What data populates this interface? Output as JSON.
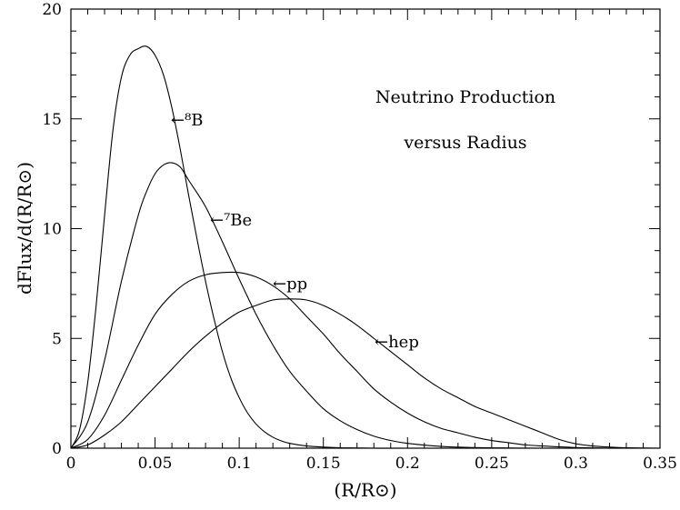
{
  "chart_data": {
    "type": "line",
    "title": "",
    "annotations": [
      "Neutrino Production",
      "versus Radius"
    ],
    "xlabel": "(R/R⊙)",
    "ylabel": "dFlux/d(R/R⊙)",
    "xlim": [
      0,
      0.35
    ],
    "ylim": [
      0,
      20
    ],
    "grid": false,
    "x_ticks": [
      "0",
      "0.05",
      "0.1",
      "0.15",
      "0.2",
      "0.25",
      "0.3",
      "0.35"
    ],
    "y_ticks": [
      "0",
      "5",
      "10",
      "15",
      "20"
    ],
    "series": [
      {
        "name": "8B",
        "label_text": "←⁸B",
        "x": [
          0,
          0.005,
          0.01,
          0.015,
          0.02,
          0.025,
          0.03,
          0.035,
          0.04,
          0.045,
          0.05,
          0.055,
          0.06,
          0.065,
          0.07,
          0.075,
          0.08,
          0.085,
          0.09,
          0.095,
          0.1,
          0.105,
          0.11,
          0.115,
          0.12,
          0.125,
          0.13,
          0.14,
          0.15,
          0.16,
          0.17,
          0.18,
          0.2,
          0.25
        ],
        "y": [
          0,
          0.8,
          3.0,
          6.5,
          10.6,
          14.5,
          16.9,
          17.9,
          18.2,
          18.3,
          17.9,
          17.0,
          15.5,
          13.6,
          11.5,
          9.5,
          7.6,
          5.9,
          4.4,
          3.2,
          2.3,
          1.6,
          1.1,
          0.75,
          0.5,
          0.33,
          0.22,
          0.1,
          0.05,
          0.02,
          0.01,
          0.0,
          0.0,
          0.0
        ]
      },
      {
        "name": "7Be",
        "label_text": "←⁷Be",
        "x": [
          0,
          0.01,
          0.02,
          0.03,
          0.04,
          0.045,
          0.05,
          0.055,
          0.06,
          0.065,
          0.07,
          0.08,
          0.09,
          0.1,
          0.11,
          0.12,
          0.13,
          0.14,
          0.15,
          0.16,
          0.17,
          0.18,
          0.19,
          0.2,
          0.22,
          0.24,
          0.26,
          0.28
        ],
        "y": [
          0,
          1.2,
          4.0,
          7.6,
          10.6,
          11.7,
          12.5,
          12.9,
          13.0,
          12.8,
          12.2,
          11.0,
          9.4,
          7.7,
          6.1,
          4.7,
          3.5,
          2.6,
          1.8,
          1.25,
          0.85,
          0.55,
          0.35,
          0.22,
          0.08,
          0.03,
          0.01,
          0.0
        ]
      },
      {
        "name": "pp",
        "label_text": "←pp",
        "x": [
          0,
          0.01,
          0.02,
          0.03,
          0.04,
          0.05,
          0.06,
          0.07,
          0.08,
          0.09,
          0.1,
          0.11,
          0.12,
          0.13,
          0.14,
          0.15,
          0.16,
          0.17,
          0.18,
          0.19,
          0.2,
          0.21,
          0.22,
          0.23,
          0.24,
          0.25,
          0.26,
          0.27,
          0.28,
          0.3,
          0.32
        ],
        "y": [
          0,
          0.4,
          1.5,
          3.1,
          4.7,
          6.1,
          7.0,
          7.6,
          7.9,
          8.0,
          8.0,
          7.8,
          7.4,
          6.8,
          6.0,
          5.2,
          4.3,
          3.5,
          2.7,
          2.1,
          1.6,
          1.2,
          0.9,
          0.7,
          0.5,
          0.35,
          0.25,
          0.15,
          0.1,
          0.03,
          0.0
        ]
      },
      {
        "name": "hep",
        "label_text": "←hep",
        "x": [
          0,
          0.01,
          0.02,
          0.03,
          0.04,
          0.05,
          0.06,
          0.07,
          0.08,
          0.09,
          0.1,
          0.11,
          0.12,
          0.13,
          0.14,
          0.15,
          0.16,
          0.17,
          0.18,
          0.19,
          0.2,
          0.21,
          0.22,
          0.23,
          0.24,
          0.25,
          0.26,
          0.27,
          0.28,
          0.29,
          0.3,
          0.31,
          0.32,
          0.33,
          0.35
        ],
        "y": [
          0,
          0.15,
          0.6,
          1.2,
          2.0,
          2.8,
          3.6,
          4.4,
          5.1,
          5.7,
          6.2,
          6.5,
          6.75,
          6.8,
          6.75,
          6.5,
          6.1,
          5.6,
          5.0,
          4.4,
          3.8,
          3.2,
          2.7,
          2.3,
          1.9,
          1.6,
          1.3,
          1.0,
          0.7,
          0.4,
          0.2,
          0.1,
          0.05,
          0.02,
          0.0
        ]
      }
    ]
  }
}
